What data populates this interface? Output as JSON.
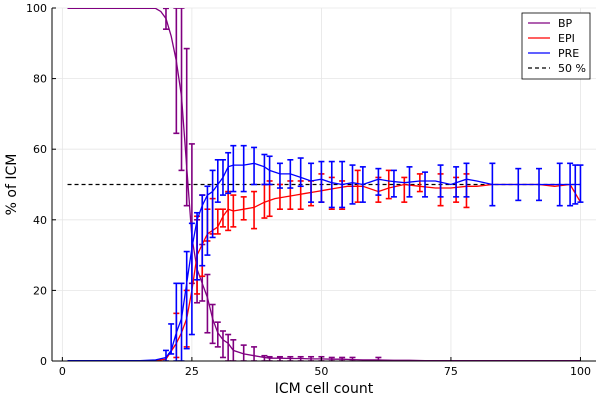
{
  "chart_data": {
    "type": "line",
    "xlabel": "ICM cell count",
    "ylabel": "% of ICM",
    "xlim": [
      -2,
      103
    ],
    "ylim": [
      0,
      100
    ],
    "xticks": [
      0,
      25,
      50,
      75,
      100
    ],
    "yticks": [
      0,
      20,
      40,
      60,
      80,
      100
    ],
    "grid": true,
    "legend_position": "top-right",
    "reference_line": {
      "name": "50 %",
      "y": 50,
      "color": "#000000",
      "style": "dashed"
    },
    "series": [
      {
        "name": "BP",
        "color": "#800080",
        "x": [
          1,
          2,
          3,
          4,
          5,
          6,
          7,
          8,
          9,
          10,
          11,
          12,
          13,
          14,
          15,
          16,
          17,
          18,
          19,
          20,
          21,
          22,
          23,
          24,
          25,
          26,
          27,
          28,
          29,
          30,
          31,
          32,
          33,
          35,
          37,
          39,
          40,
          42,
          44,
          46,
          48,
          50,
          52,
          54,
          56,
          58,
          61,
          64,
          67,
          70,
          73,
          76,
          78,
          83,
          88,
          92,
          96,
          98,
          99,
          100
        ],
        "y": [
          99.9,
          99.9,
          99.9,
          99.9,
          99.9,
          99.9,
          99.9,
          99.9,
          99.9,
          99.9,
          99.9,
          99.9,
          99.9,
          99.9,
          99.9,
          99.9,
          99.9,
          99.9,
          99,
          97,
          92,
          85,
          75,
          55,
          35,
          26,
          22,
          18,
          12,
          8,
          6,
          5,
          3,
          2,
          1.5,
          1,
          0.8,
          0.8,
          0.7,
          0.7,
          0.6,
          0.6,
          0.5,
          0.5,
          0.4,
          0.3,
          0.3,
          0.2,
          0.2,
          0.1,
          0.1,
          0.1,
          0.1,
          0.1,
          0.1,
          0.1,
          0.1,
          0.1,
          0.1,
          0.1
        ],
        "err_x": [
          20,
          22,
          23,
          24,
          25,
          26,
          27,
          28,
          29,
          30,
          31,
          32,
          33,
          35,
          37,
          39,
          40,
          42,
          44,
          46,
          48,
          50,
          52,
          54,
          56,
          61
        ],
        "err_low": [
          94,
          64.5,
          54,
          44,
          22,
          16.5,
          17,
          8,
          5,
          4,
          1,
          0,
          0,
          0,
          0,
          0,
          0,
          0,
          0,
          0,
          0,
          0,
          0,
          0,
          0,
          0
        ],
        "err_high": [
          99.9,
          100,
          100,
          88.5,
          61.5,
          40,
          33,
          24.5,
          16,
          11,
          8.5,
          7.5,
          6,
          4.5,
          4,
          1.5,
          1.2,
          1.2,
          1.2,
          1.2,
          1.2,
          1.2,
          1,
          1,
          1,
          1
        ]
      },
      {
        "name": "EPI",
        "color": "#ff0000",
        "x": [
          1,
          5,
          10,
          15,
          18,
          20,
          22,
          23,
          24,
          25,
          26,
          27,
          28,
          29,
          30,
          31,
          32,
          33,
          35,
          37,
          39,
          41,
          43,
          45,
          47,
          49,
          51,
          53,
          55,
          58,
          61,
          63,
          66,
          69,
          72,
          75,
          78,
          80,
          83,
          86,
          89,
          92,
          95,
          98,
          100
        ],
        "y": [
          0.1,
          0.1,
          0.1,
          0.1,
          0.1,
          0.5,
          5,
          8,
          12,
          20,
          30,
          33,
          36,
          37,
          38,
          41,
          43,
          42.5,
          43,
          43.5,
          45,
          46,
          46.5,
          47,
          47.5,
          48,
          48.5,
          49,
          49.5,
          49.5,
          48,
          49,
          50,
          49.5,
          49,
          49,
          49.5,
          49.5,
          50,
          50,
          50,
          50,
          49.5,
          50,
          45
        ],
        "err_x": [
          22,
          24,
          26,
          27,
          28,
          29,
          30,
          31,
          32,
          33,
          35,
          37,
          39,
          40,
          42,
          44,
          46,
          48,
          50,
          52,
          54,
          57,
          61,
          63,
          66,
          69,
          73,
          76,
          78
        ],
        "err_low": [
          1,
          4,
          19,
          24,
          34,
          36,
          36,
          38,
          37,
          38,
          40,
          37.5,
          40.5,
          41,
          43,
          43,
          43,
          44,
          45,
          43,
          43,
          45,
          45,
          46,
          45,
          48,
          44,
          45,
          43.5
        ],
        "err_high": [
          13.5,
          20,
          41,
          47,
          43,
          46,
          43,
          43,
          48,
          47,
          46.5,
          48,
          50,
          51,
          50,
          51,
          51,
          51,
          53,
          52,
          51,
          54,
          52,
          54,
          52,
          53,
          53,
          52,
          53
        ]
      },
      {
        "name": "PRE",
        "color": "#0000ff",
        "x": [
          1,
          5,
          10,
          15,
          18,
          20,
          21,
          22,
          23,
          24,
          25,
          26,
          27,
          28,
          29,
          30,
          31,
          32,
          33,
          35,
          37,
          39,
          40,
          42,
          44,
          46,
          48,
          50,
          52,
          54,
          56,
          58,
          61,
          63,
          66,
          69,
          72,
          75,
          78,
          80,
          83,
          86,
          89,
          92,
          95,
          98,
          100
        ],
        "y": [
          0.1,
          0.1,
          0.1,
          0.1,
          0.3,
          1,
          3,
          8,
          12,
          22,
          32,
          40,
          44,
          47,
          48,
          50,
          52,
          55,
          55.5,
          55.5,
          56,
          55,
          54,
          53,
          53,
          52,
          51,
          51.5,
          50.5,
          50,
          50.5,
          50,
          51.5,
          51,
          50.5,
          51,
          51,
          50,
          51.5,
          51,
          50,
          50,
          50,
          50,
          50,
          50,
          50
        ],
        "err_x": [
          20,
          21,
          22,
          23,
          24,
          25,
          26,
          27,
          28,
          29,
          30,
          31,
          32,
          33,
          35,
          37,
          39,
          40,
          42,
          44,
          46,
          48,
          50,
          52,
          54,
          56,
          58,
          61,
          64,
          67,
          70,
          73,
          76,
          78,
          83,
          88,
          92,
          96,
          98,
          99,
          100
        ],
        "err_low": [
          0,
          2,
          0,
          0,
          3.5,
          7.5,
          23,
          27,
          30,
          35,
          45,
          47,
          47.5,
          48,
          48,
          50,
          50,
          50,
          49,
          49,
          49.5,
          45,
          45,
          43.5,
          43.5,
          44.5,
          45,
          47,
          46.5,
          46.5,
          46.5,
          46.5,
          46.5,
          46.5,
          44,
          45.5,
          45.5,
          44,
          44,
          44.5,
          45
        ],
        "err_high": [
          3,
          10.5,
          22,
          22,
          31,
          39,
          42,
          47,
          49.5,
          54,
          57,
          57,
          59,
          61,
          61,
          60.5,
          58.5,
          58,
          56,
          57,
          57.5,
          56,
          56.5,
          56.5,
          56.5,
          55.5,
          55,
          54.5,
          54,
          55,
          53.5,
          55.5,
          55,
          56,
          56,
          54.5,
          54.5,
          56,
          56,
          55.5,
          55.5
        ]
      }
    ]
  }
}
